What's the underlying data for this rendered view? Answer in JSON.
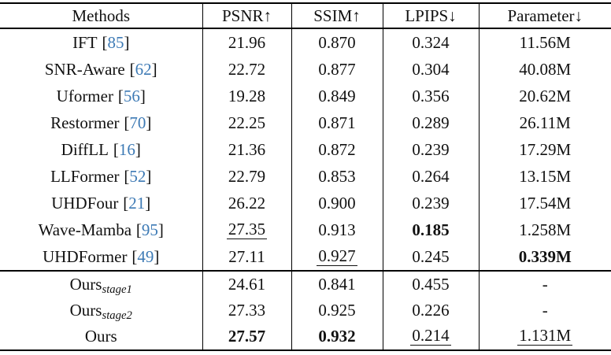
{
  "fmt": {
    "bracket_open": "[",
    "bracket_close": "]"
  },
  "colors": {
    "citation": "#3d7ab5",
    "text": "#111111",
    "rule": "#000000"
  },
  "table": {
    "headers": [
      "Methods",
      "PSNR↑",
      "SSIM↑",
      "LPIPS↓",
      "Parameter↓"
    ],
    "rows": [
      {
        "method": {
          "name": "IFT",
          "cite": "85"
        },
        "psnr": {
          "v": "21.96",
          "cls": ""
        },
        "ssim": {
          "v": "0.870",
          "cls": ""
        },
        "lpips": {
          "v": "0.324",
          "cls": ""
        },
        "param": {
          "v": "11.56M",
          "cls": ""
        }
      },
      {
        "method": {
          "name": "SNR-Aware",
          "cite": "62"
        },
        "psnr": {
          "v": "22.72",
          "cls": ""
        },
        "ssim": {
          "v": "0.877",
          "cls": ""
        },
        "lpips": {
          "v": "0.304",
          "cls": ""
        },
        "param": {
          "v": "40.08M",
          "cls": ""
        }
      },
      {
        "method": {
          "name": "Uformer",
          "cite": "56"
        },
        "psnr": {
          "v": "19.28",
          "cls": ""
        },
        "ssim": {
          "v": "0.849",
          "cls": ""
        },
        "lpips": {
          "v": "0.356",
          "cls": ""
        },
        "param": {
          "v": "20.62M",
          "cls": ""
        }
      },
      {
        "method": {
          "name": "Restormer",
          "cite": "70"
        },
        "psnr": {
          "v": "22.25",
          "cls": ""
        },
        "ssim": {
          "v": "0.871",
          "cls": ""
        },
        "lpips": {
          "v": "0.289",
          "cls": ""
        },
        "param": {
          "v": "26.11M",
          "cls": ""
        }
      },
      {
        "method": {
          "name": "DiffLL",
          "cite": "16"
        },
        "psnr": {
          "v": "21.36",
          "cls": ""
        },
        "ssim": {
          "v": "0.872",
          "cls": ""
        },
        "lpips": {
          "v": "0.239",
          "cls": ""
        },
        "param": {
          "v": "17.29M",
          "cls": ""
        }
      },
      {
        "method": {
          "name": "LLFormer",
          "cite": "52"
        },
        "psnr": {
          "v": "22.79",
          "cls": ""
        },
        "ssim": {
          "v": "0.853",
          "cls": ""
        },
        "lpips": {
          "v": "0.264",
          "cls": ""
        },
        "param": {
          "v": "13.15M",
          "cls": ""
        }
      },
      {
        "method": {
          "name": "UHDFour",
          "cite": "21"
        },
        "psnr": {
          "v": "26.22",
          "cls": ""
        },
        "ssim": {
          "v": "0.900",
          "cls": ""
        },
        "lpips": {
          "v": "0.239",
          "cls": ""
        },
        "param": {
          "v": "17.54M",
          "cls": ""
        }
      },
      {
        "method": {
          "name": "Wave-Mamba",
          "cite": "95"
        },
        "psnr": {
          "v": "27.35",
          "cls": "underline"
        },
        "ssim": {
          "v": "0.913",
          "cls": ""
        },
        "lpips": {
          "v": "0.185",
          "cls": "bold"
        },
        "param": {
          "v": "1.258M",
          "cls": ""
        }
      },
      {
        "method": {
          "name": "UHDFormer",
          "cite": "49"
        },
        "psnr": {
          "v": "27.11",
          "cls": ""
        },
        "ssim": {
          "v": "0.927",
          "cls": "underline"
        },
        "lpips": {
          "v": "0.245",
          "cls": ""
        },
        "param": {
          "v": "0.339M",
          "cls": "bold"
        }
      },
      {
        "method": {
          "name": "Ours",
          "sub": "stage1"
        },
        "psnr": {
          "v": "24.61",
          "cls": ""
        },
        "ssim": {
          "v": "0.841",
          "cls": ""
        },
        "lpips": {
          "v": "0.455",
          "cls": ""
        },
        "param": {
          "v": "-",
          "cls": ""
        }
      },
      {
        "method": {
          "name": "Ours",
          "sub": "stage2"
        },
        "psnr": {
          "v": "27.33",
          "cls": ""
        },
        "ssim": {
          "v": "0.925",
          "cls": ""
        },
        "lpips": {
          "v": "0.226",
          "cls": ""
        },
        "param": {
          "v": "-",
          "cls": ""
        }
      },
      {
        "method": {
          "name": "Ours"
        },
        "psnr": {
          "v": "27.57",
          "cls": "bold"
        },
        "ssim": {
          "v": "0.932",
          "cls": "bold"
        },
        "lpips": {
          "v": "0.214",
          "cls": "underline"
        },
        "param": {
          "v": "1.131M",
          "cls": "underline"
        }
      }
    ]
  }
}
